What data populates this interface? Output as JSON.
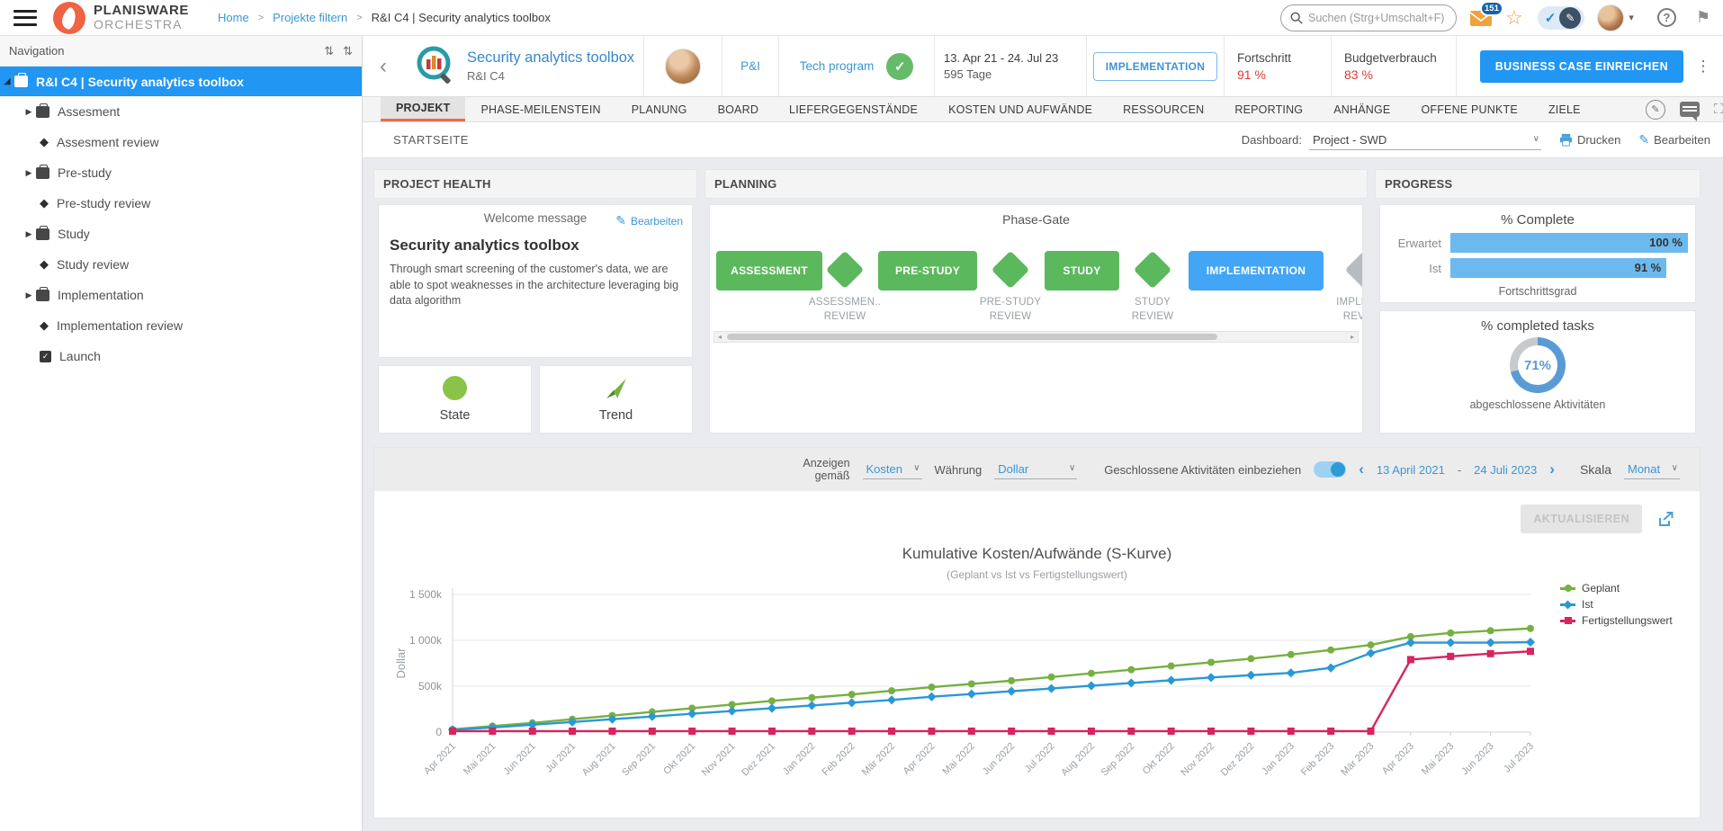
{
  "colors": {
    "accent_blue": "#2196f3",
    "link_blue": "#3a97d4",
    "alert_red": "#e53935",
    "ok_green": "#66bb6a",
    "brand_orange": "#ef6243",
    "active_tab_orange": "#ed6a45"
  },
  "icons": {
    "hamburger": "☰",
    "star": "☆",
    "check": "✓",
    "pencil": "✎",
    "question": "?",
    "flag": "⚑",
    "dots_vertical": "⋮",
    "back_chevron": "‹",
    "caret_down": "▾",
    "crumb_sep": ">",
    "sort_arrows": "⇅",
    "tree_collapsed": "▶",
    "tree_expanded": "◢",
    "diamond": "◆",
    "chevron_left": "‹",
    "chevron_right": "›",
    "select_caret": "∨",
    "scroll_left": "◂",
    "scroll_right": "▸",
    "date_sep": "-",
    "clip_icon": "⛶"
  },
  "topbar": {
    "brand_line1": "PLANISWARE",
    "brand_line2": "ORCHESTRA",
    "breadcrumb": {
      "home": "Home",
      "filter": "Projekte filtern",
      "current": "R&I C4 | Security analytics toolbox"
    },
    "search_placeholder": "Suchen (Strg+Umschalt+F)",
    "mail_badge": "151"
  },
  "sidebar": {
    "title": "Navigation",
    "items": [
      {
        "label": "R&I C4 | Security analytics toolbox",
        "type": "project",
        "selected": true
      },
      {
        "label": "Assesment",
        "type": "phase"
      },
      {
        "label": "Assesment review",
        "type": "milestone"
      },
      {
        "label": "Pre-study",
        "type": "phase"
      },
      {
        "label": "Pre-study review",
        "type": "milestone"
      },
      {
        "label": "Study",
        "type": "phase"
      },
      {
        "label": "Study review",
        "type": "milestone"
      },
      {
        "label": "Implementation",
        "type": "phase"
      },
      {
        "label": "Implementation review",
        "type": "milestone"
      },
      {
        "label": "Launch",
        "type": "task"
      }
    ]
  },
  "project_header": {
    "title": "Security analytics toolbox",
    "code": "R&I C4",
    "org": "P&I",
    "program": "Tech program",
    "date_range": "13. Apr 21 - 24. Jul 23",
    "duration": "595 Tage",
    "stage_badge": "IMPLEMENTATION",
    "progress_label": "Fortschritt",
    "progress_value": "91 %",
    "budget_label": "Budgetverbrauch",
    "budget_value": "83 %",
    "cta": "BUSINESS CASE EINREICHEN"
  },
  "tabs": {
    "items": [
      {
        "label": "PROJEKT",
        "active": true
      },
      {
        "label": "PHASE-MEILENSTEIN"
      },
      {
        "label": "PLANUNG"
      },
      {
        "label": "BOARD"
      },
      {
        "label": "LIEFERGEGENSTÄNDE"
      },
      {
        "label": "KOSTEN UND AUFWÄNDE"
      },
      {
        "label": "RESSOURCEN"
      },
      {
        "label": "REPORTING"
      },
      {
        "label": "ANHÄNGE"
      },
      {
        "label": "OFFENE PUNKTE"
      },
      {
        "label": "ZIELE"
      }
    ]
  },
  "subheader": {
    "title": "STARTSEITE",
    "dashboard_label": "Dashboard:",
    "dashboard_value": "Project - SWD",
    "print": "Drucken",
    "edit": "Bearbeiten"
  },
  "project_health": {
    "header": "PROJECT HEALTH",
    "card_title": "Welcome message",
    "edit": "Bearbeiten",
    "heading": "Security analytics toolbox",
    "description": "Through smart screening of the customer's data, we are able to spot weaknesses in the architecture leveraging big data algorithm",
    "state_label": "State",
    "trend_label": "Trend"
  },
  "planning": {
    "header": "PLANNING",
    "title": "Phase-Gate",
    "gates": [
      {
        "label": "ASSESSMENT",
        "color": "#5cb85c"
      },
      {
        "label": "PRE-STUDY",
        "color": "#5cb85c"
      },
      {
        "label": "STUDY",
        "color": "#5cb85c"
      },
      {
        "label": "IMPLEMENTATION",
        "color": "#42a5f5"
      }
    ],
    "gate_diamond_color": "#5cb85c",
    "next_diamond_color": "#b9bcbf",
    "reviews": [
      {
        "line1": "ASSESSMEN..",
        "line2": "REVIEW"
      },
      {
        "line1": "PRE-STUDY",
        "line2": "REVIEW"
      },
      {
        "line1": "STUDY",
        "line2": "REVIEW"
      },
      {
        "line1": "IMPLEMEN",
        "line2": "REVIEW"
      }
    ]
  },
  "progress": {
    "header": "PROGRESS",
    "complete": {
      "title": "% Complete",
      "bar_color": "#6cb9ee",
      "rows": [
        {
          "label": "Erwartet",
          "value": 100,
          "display": "100 %"
        },
        {
          "label": "Ist",
          "value": 91,
          "display": "91 %"
        }
      ],
      "caption": "Fortschrittsgrad"
    },
    "tasks": {
      "title": "% completed tasks",
      "percent": 71,
      "display": "71%",
      "color": "#5b9bd5",
      "rest_color": "#c6cacd",
      "caption": "abgeschlossene Aktivitäten"
    }
  },
  "chart_controls": {
    "display_label": "Anzeigen gemäß",
    "display_value": "Kosten",
    "currency_label": "Währung",
    "currency_value": "Dollar",
    "toggle_label": "Geschlossene Aktivitäten einbeziehen",
    "toggle_on": true,
    "date_from": "13 April 2021",
    "date_to": "24 Juli 2023",
    "scale_label": "Skala",
    "scale_value": "Monat",
    "refresh_button": "AKTUALISIEREN"
  },
  "chart_data": {
    "type": "line",
    "title": "Kumulative Kosten/Aufwände (S-Kurve)",
    "subtitle": "(Geplant vs Ist vs Fertigstellungswert)",
    "ylabel": "Dollar",
    "ylim": [
      0,
      1500000
    ],
    "grid": true,
    "legend_position": "right",
    "yticks": [
      {
        "value": 0,
        "label": "0"
      },
      {
        "value": 500000,
        "label": "500k"
      },
      {
        "value": 1000000,
        "label": "1 000k"
      },
      {
        "value": 1500000,
        "label": "1 500k"
      }
    ],
    "categories": [
      "Apr 2021",
      "Mai 2021",
      "Jun 2021",
      "Jul 2021",
      "Aug 2021",
      "Sep 2021",
      "Okt 2021",
      "Nov 2021",
      "Dez 2021",
      "Jan 2022",
      "Feb 2022",
      "Mär 2022",
      "Apr 2022",
      "Mai 2022",
      "Jun 2022",
      "Jul 2022",
      "Aug 2022",
      "Sep 2022",
      "Okt 2022",
      "Nov 2022",
      "Dez 2022",
      "Jan 2023",
      "Feb 2023",
      "Mär 2023",
      "Apr 2023",
      "Mai 2023",
      "Jun 2023",
      "Jul 2023"
    ],
    "series": [
      {
        "name": "Geplant",
        "color": "#76b041",
        "marker": "circle",
        "values": [
          30000,
          65000,
          100000,
          140000,
          180000,
          220000,
          260000,
          300000,
          340000,
          375000,
          410000,
          450000,
          490000,
          525000,
          560000,
          600000,
          640000,
          680000,
          720000,
          760000,
          800000,
          845000,
          895000,
          950000,
          1040000,
          1080000,
          1105000,
          1130000
        ]
      },
      {
        "name": "Ist",
        "color": "#2b98d6",
        "marker": "diamond",
        "values": [
          25000,
          50000,
          80000,
          110000,
          140000,
          170000,
          200000,
          230000,
          260000,
          290000,
          320000,
          350000,
          385000,
          415000,
          445000,
          475000,
          505000,
          535000,
          565000,
          595000,
          620000,
          645000,
          700000,
          860000,
          975000,
          975000,
          975000,
          980000
        ]
      },
      {
        "name": "Fertigstellungswert",
        "color": "#d6255f",
        "marker": "square",
        "values": [
          10000,
          10000,
          10000,
          10000,
          10000,
          10000,
          10000,
          10000,
          10000,
          10000,
          10000,
          10000,
          10000,
          10000,
          10000,
          10000,
          10000,
          10000,
          10000,
          10000,
          10000,
          10000,
          10000,
          10000,
          790000,
          825000,
          855000,
          880000
        ]
      }
    ]
  }
}
